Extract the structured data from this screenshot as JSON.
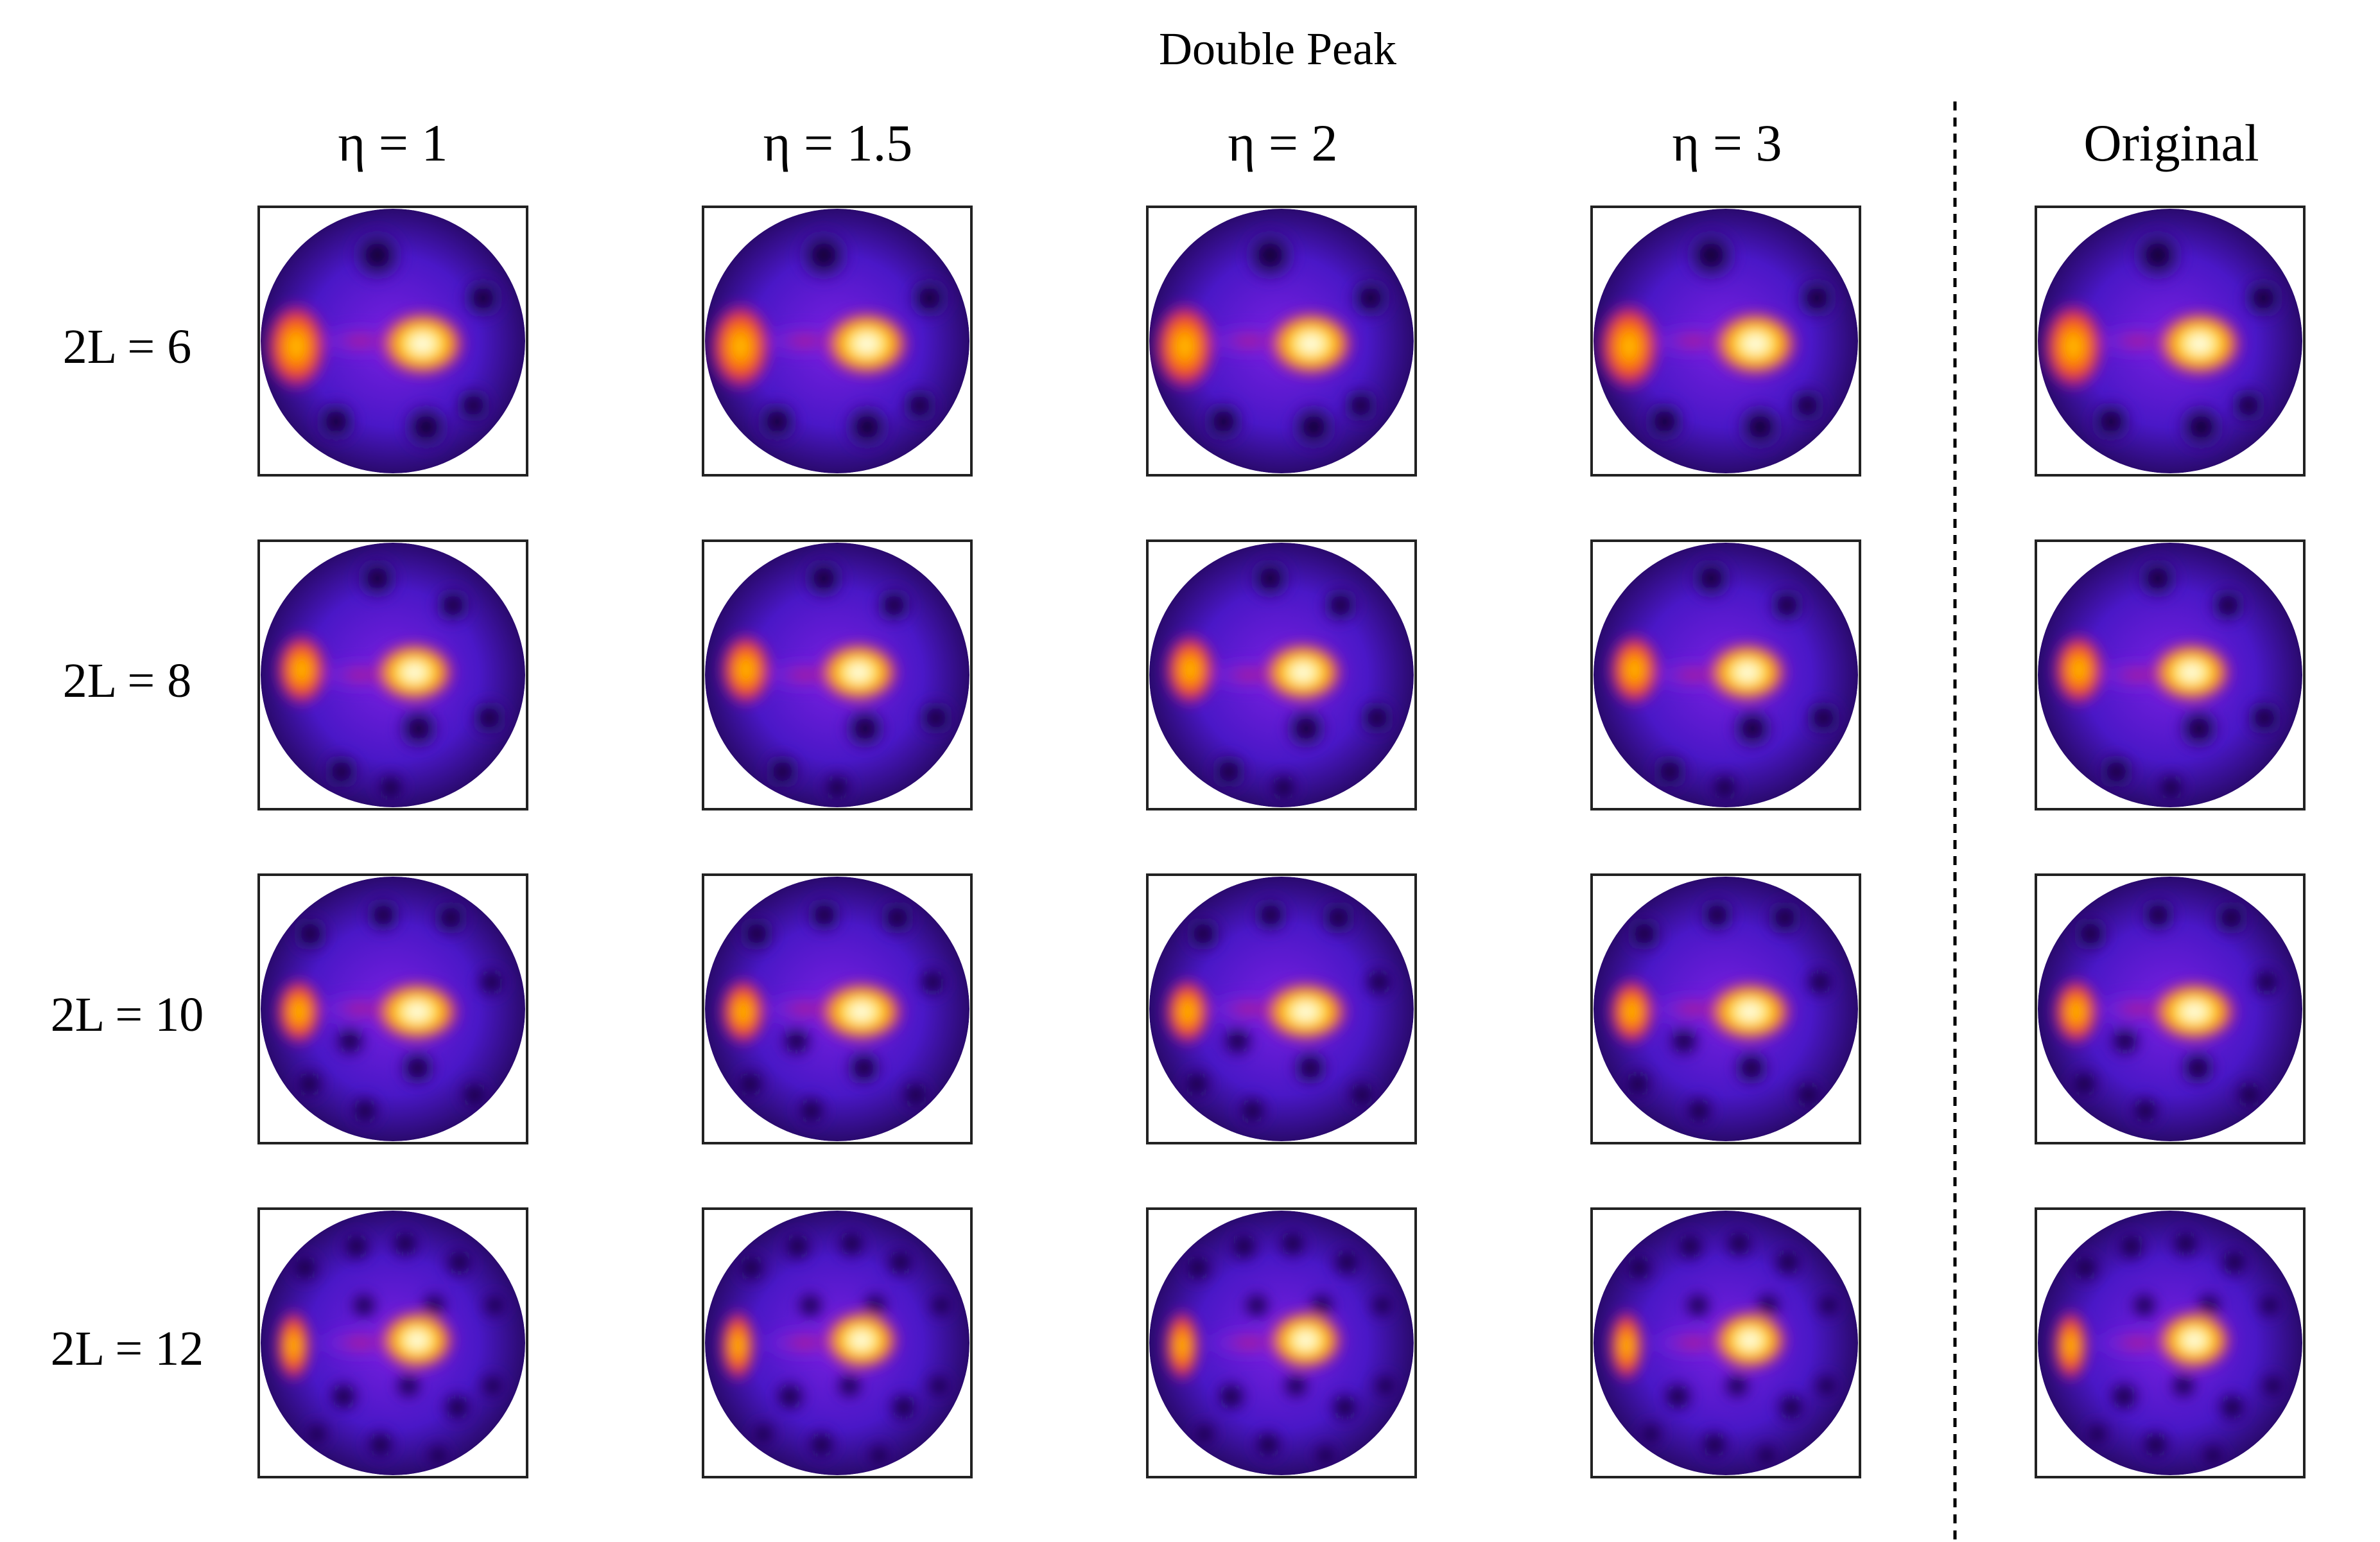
{
  "figure": {
    "title": "Double Peak",
    "columns": [
      {
        "label": "η = 1"
      },
      {
        "label": "η = 1.5"
      },
      {
        "label": "η = 2"
      },
      {
        "label": "η = 3"
      },
      {
        "label": "Original"
      }
    ],
    "rows": [
      {
        "label": "2L = 6"
      },
      {
        "label": "2L = 8"
      },
      {
        "label": "2L = 10"
      },
      {
        "label": "2L = 12"
      }
    ],
    "separator_style": "dashed",
    "colormap": [
      "#000000",
      "#2a0a6e",
      "#4a17c7",
      "#7a1fe0",
      "#c0137a",
      "#f2461a",
      "#ff8f00",
      "#ffd200",
      "#fff8c0",
      "#ffffff"
    ]
  }
}
